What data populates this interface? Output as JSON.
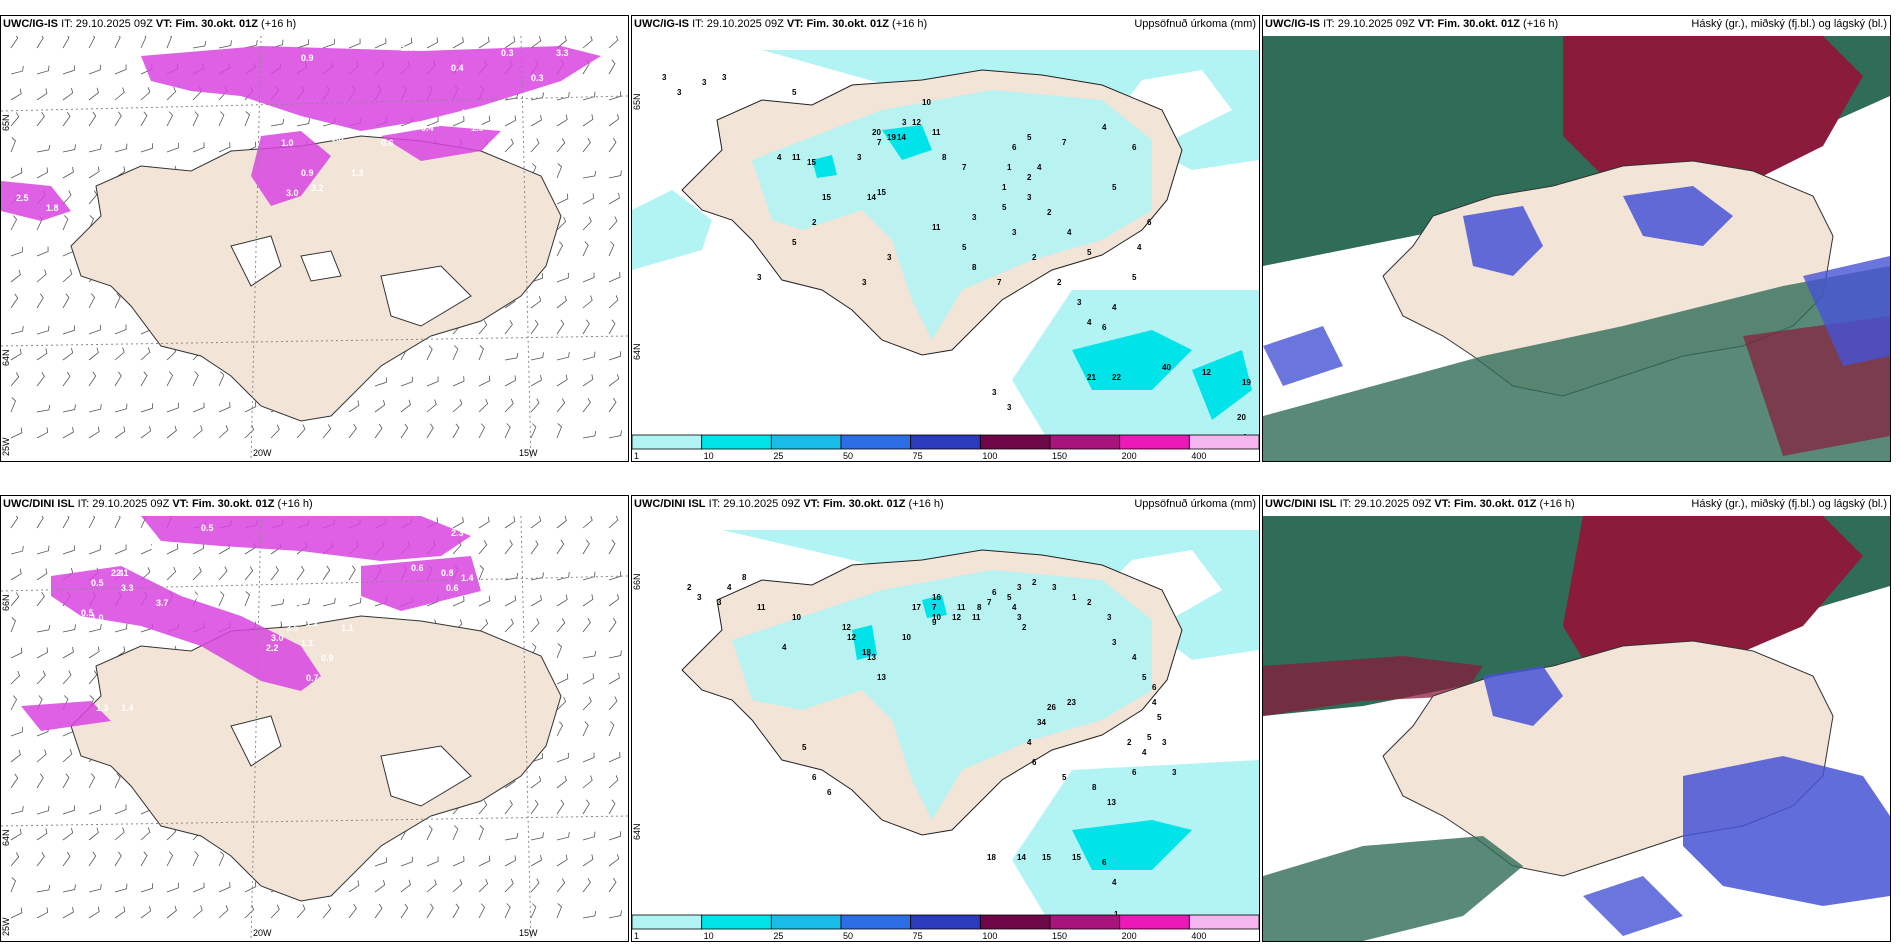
{
  "panels": [
    {
      "id": "ig-is-wind",
      "model": "UWC/IG-IS",
      "it_label": "IT:",
      "it_value": "29.10.2025 09Z",
      "vt_label": "VT:",
      "vt_value": "Fim. 30.okt. 01Z",
      "lead": "(+16 h)",
      "right_title": "",
      "lat_labels": [
        "65N",
        "64N"
      ],
      "lon_labels": [
        "25W",
        "20W",
        "15W"
      ],
      "precip_labels": [
        "0.9",
        "0.9",
        "1.9",
        "0.4",
        "0.3",
        "0.3",
        "0.5",
        "0.8",
        "0.6",
        "1.9",
        "0.9",
        "3.0",
        "3.2",
        "1.3",
        "2.5",
        "1.8",
        "1.5",
        "1.0",
        "0.8",
        "0.6",
        "0.4",
        "3.3"
      ]
    },
    {
      "id": "ig-is-precip",
      "model": "UWC/IG-IS",
      "it_label": "IT:",
      "it_value": "29.10.2025 09Z",
      "vt_label": "VT:",
      "vt_value": "Fim. 30.okt. 01Z",
      "lead": "(+16 h)",
      "right_title": "Uppsöfnuð úrkoma (mm)",
      "lat_labels": [
        "65N",
        "64N"
      ],
      "lon_labels": [],
      "accum_labels": [
        "3",
        "3",
        "3",
        "3",
        "5",
        "10",
        "3",
        "7",
        "3",
        "4",
        "11",
        "15",
        "20",
        "19",
        "14",
        "12",
        "11",
        "8",
        "7",
        "15",
        "14",
        "15",
        "11",
        "5",
        "8",
        "7",
        "5",
        "3",
        "2",
        "2",
        "3",
        "4",
        "6",
        "4",
        "5",
        "4",
        "6",
        "4",
        "5",
        "2",
        "3",
        "2",
        "1",
        "6",
        "5",
        "4",
        "7",
        "4",
        "6",
        "5",
        "21",
        "22",
        "40",
        "12",
        "19",
        "20",
        "4",
        "3",
        "3",
        "2",
        "5",
        "3",
        "1",
        "3",
        "3",
        "3"
      ],
      "colorbar_labels": [
        "1",
        "10",
        "25",
        "50",
        "75",
        "100",
        "150",
        "200",
        "400"
      ]
    },
    {
      "id": "ig-is-clouds",
      "model": "UWC/IG-IS",
      "it_label": "IT:",
      "it_value": "29.10.2025 09Z",
      "vt_label": "VT:",
      "vt_value": "Fim. 30.okt. 01Z",
      "lead": "(+16 h)",
      "right_title": "Háský (gr.), miðský (fj.bl.) og lágský (bl.)"
    },
    {
      "id": "dini-wind",
      "model": "UWC/DINI ISL",
      "it_label": "IT:",
      "it_value": "29.10.2025 09Z",
      "vt_label": "VT:",
      "vt_value": "Fim. 30.okt. 01Z",
      "lead": "(+16 h)",
      "right_title": "",
      "lat_labels": [
        "66N",
        "64N"
      ],
      "lon_labels": [
        "25W",
        "20W",
        "15W"
      ],
      "precip_labels": [
        "0.5",
        "2.3",
        "3.3",
        "1.0",
        "0.4",
        "2.4",
        "3.7",
        "0.4",
        "0.5",
        "1.0",
        "0.6",
        "0.8",
        "1.4",
        "3.3",
        "2.1",
        "0.5",
        "1.1",
        "0.9",
        "1.2",
        "3.5",
        "2.2",
        "0.8",
        "0.5",
        "2.3",
        "3.0",
        "0.7",
        "1.1",
        "0.6",
        "1.4",
        "1.3"
      ]
    },
    {
      "id": "dini-precip",
      "model": "UWC/DINI ISL",
      "it_label": "IT:",
      "it_value": "29.10.2025 09Z",
      "vt_label": "VT:",
      "vt_value": "Fim. 30.okt. 01Z",
      "lead": "(+16 h)",
      "right_title": "Uppsöfnuð úrkoma (mm)",
      "lat_labels": [
        "66N",
        "64N"
      ],
      "lon_labels": [],
      "accum_labels": [
        "2",
        "3",
        "3",
        "4",
        "8",
        "11",
        "10",
        "12",
        "12",
        "18",
        "17",
        "16",
        "10",
        "7",
        "13",
        "13",
        "10",
        "9",
        "12",
        "11",
        "11",
        "8",
        "7",
        "6",
        "3",
        "5",
        "4",
        "3",
        "2",
        "2",
        "3",
        "1",
        "2",
        "3",
        "3",
        "4",
        "5",
        "6",
        "4",
        "5",
        "5",
        "4",
        "6",
        "13",
        "8",
        "5",
        "6",
        "4",
        "34",
        "26",
        "23",
        "18",
        "14",
        "15",
        "15",
        "6",
        "4",
        "1",
        "2",
        "3",
        "3",
        "4",
        "5",
        "6",
        "6"
      ],
      "colorbar_labels": [
        "1",
        "10",
        "25",
        "50",
        "75",
        "100",
        "150",
        "200",
        "400"
      ]
    },
    {
      "id": "dini-clouds",
      "model": "UWC/DINI ISL",
      "it_label": "IT:",
      "it_value": "29.10.2025 09Z",
      "vt_label": "VT:",
      "vt_value": "Fim. 30.okt. 01Z",
      "lead": "(+16 h)",
      "right_title": "Háský (gr.), miðský (fj.bl.) og lágský (bl.)"
    }
  ],
  "colors": {
    "land": "#f2e4d6",
    "sea": "#ffffff",
    "precip_light": "#b2f4f4",
    "precip_mid": "#00e3e8",
    "precip_25": "#19bce8",
    "precip_50": "#2d6ee6",
    "precip_75": "#2b3bbb",
    "precip_100": "#6e0747",
    "precip_150": "#a8137c",
    "precip_200": "#ea19b8",
    "precip_400": "#f5b6ef",
    "wind_precip": "#d845e0",
    "high_cloud": "#2f6d58",
    "mid_cloud": "#8a1b3b",
    "low_cloud": "#4653d6"
  }
}
